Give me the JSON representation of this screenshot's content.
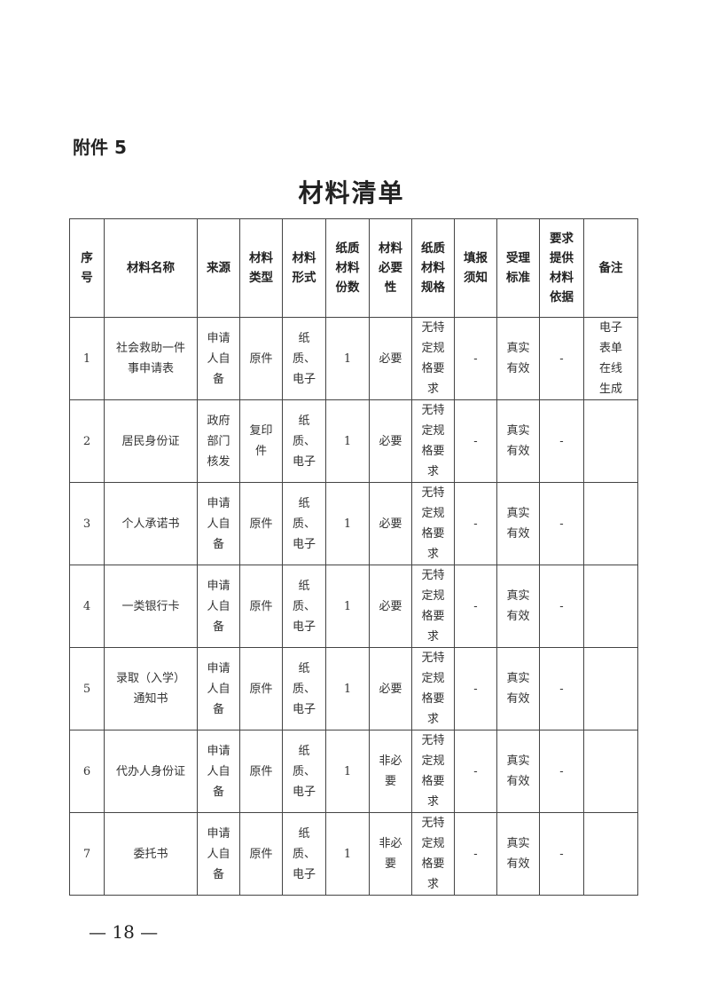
{
  "attachment_label": "附件 5",
  "title": "材料清单",
  "table": {
    "headers": [
      "序\n号",
      "材料名称",
      "来源",
      "材料\n类型",
      "材料\n形式",
      "纸质\n材料\n份数",
      "材料\n必要\n性",
      "纸质\n材料\n规格",
      "填报\n须知",
      "受理\n标准",
      "要求\n提供\n材料\n依据",
      "备注"
    ],
    "rows": [
      [
        "1",
        "社会救助一件\n事申请表",
        "申请\n人自\n备",
        "原件",
        "纸\n质、\n电子",
        "1",
        "必要",
        "无特\n定规\n格要\n求",
        "-",
        "真实\n有效",
        "-",
        "电子\n表单\n在线\n生成"
      ],
      [
        "2",
        "居民身份证",
        "政府\n部门\n核发",
        "复印\n件",
        "纸\n质、\n电子",
        "1",
        "必要",
        "无特\n定规\n格要\n求",
        "-",
        "真实\n有效",
        "-",
        ""
      ],
      [
        "3",
        "个人承诺书",
        "申请\n人自\n备",
        "原件",
        "纸\n质、\n电子",
        "1",
        "必要",
        "无特\n定规\n格要\n求",
        "-",
        "真实\n有效",
        "-",
        ""
      ],
      [
        "4",
        "一类银行卡",
        "申请\n人自\n备",
        "原件",
        "纸\n质、\n电子",
        "1",
        "必要",
        "无特\n定规\n格要\n求",
        "-",
        "真实\n有效",
        "-",
        ""
      ],
      [
        "5",
        "录取（入学）\n通知书",
        "申请\n人自\n备",
        "原件",
        "纸\n质、\n电子",
        "1",
        "必要",
        "无特\n定规\n格要\n求",
        "-",
        "真实\n有效",
        "-",
        ""
      ],
      [
        "6",
        "代办人身份证",
        "申请\n人自\n备",
        "原件",
        "纸\n质、\n电子",
        "1",
        "非必\n要",
        "无特\n定规\n格要\n求",
        "-",
        "真实\n有效",
        "-",
        ""
      ],
      [
        "7",
        "委托书",
        "申请\n人自\n备",
        "原件",
        "纸\n质、\n电子",
        "1",
        "非必\n要",
        "无特\n定规\n格要\n求",
        "-",
        "真实\n有效",
        "-",
        ""
      ]
    ]
  },
  "page_number": "— 18 —"
}
